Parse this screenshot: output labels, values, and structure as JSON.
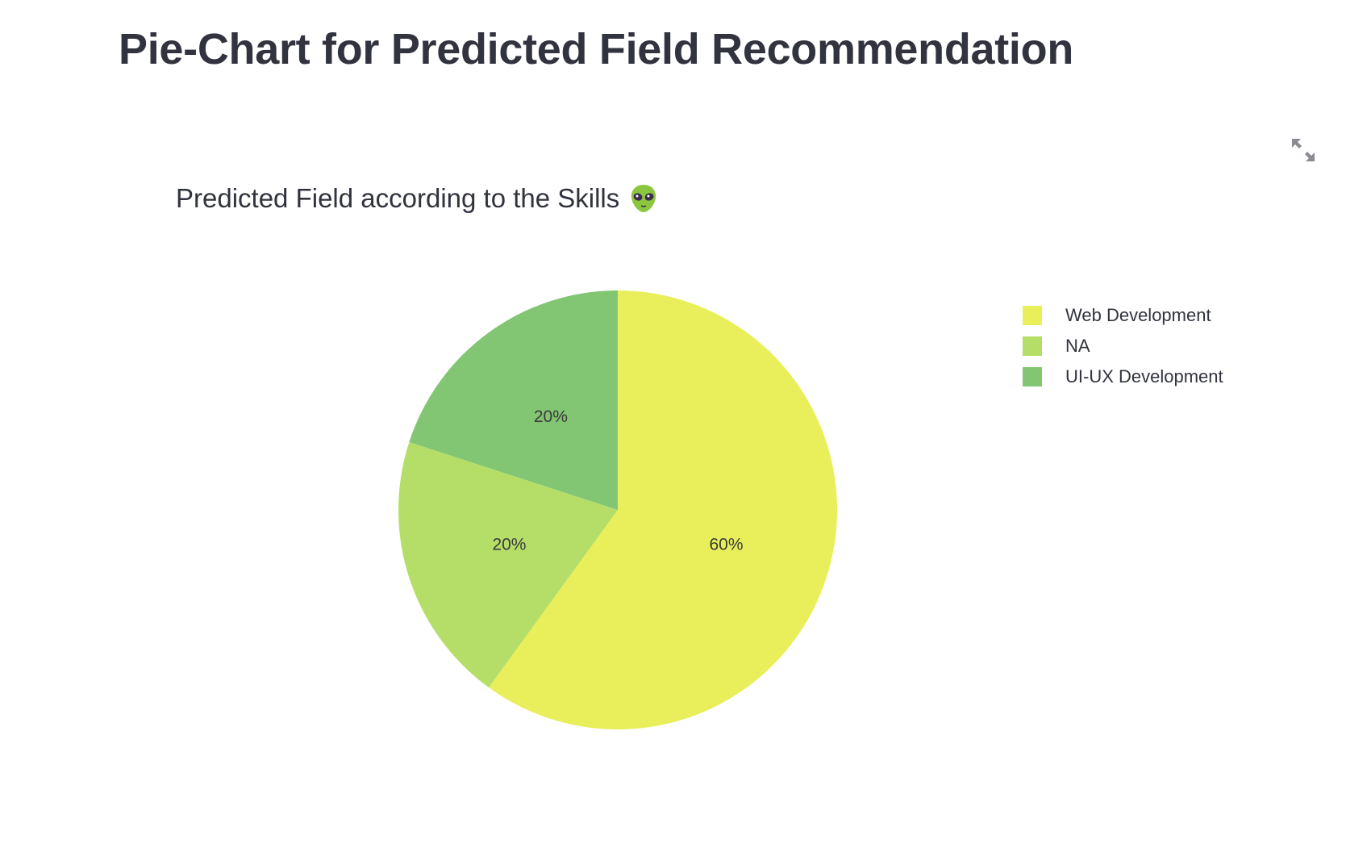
{
  "page": {
    "title": "Pie-Chart for Predicted Field Recommendation"
  },
  "toolbar": {
    "fullscreen_icon": "expand-arrows-icon"
  },
  "chart_data": {
    "type": "pie",
    "title": "Predicted Field according to the Skills",
    "title_emoji": "alien-emoji-icon",
    "categories": [
      "Web Development",
      "NA",
      "UI-UX Development"
    ],
    "values": [
      60,
      20,
      20
    ],
    "labels": [
      "60%",
      "20%",
      "20%"
    ],
    "colors": [
      "#e9ef5b",
      "#b5de68",
      "#82c673"
    ],
    "legend_placement": "right",
    "start_angle_deg": 0,
    "direction": "clockwise"
  }
}
